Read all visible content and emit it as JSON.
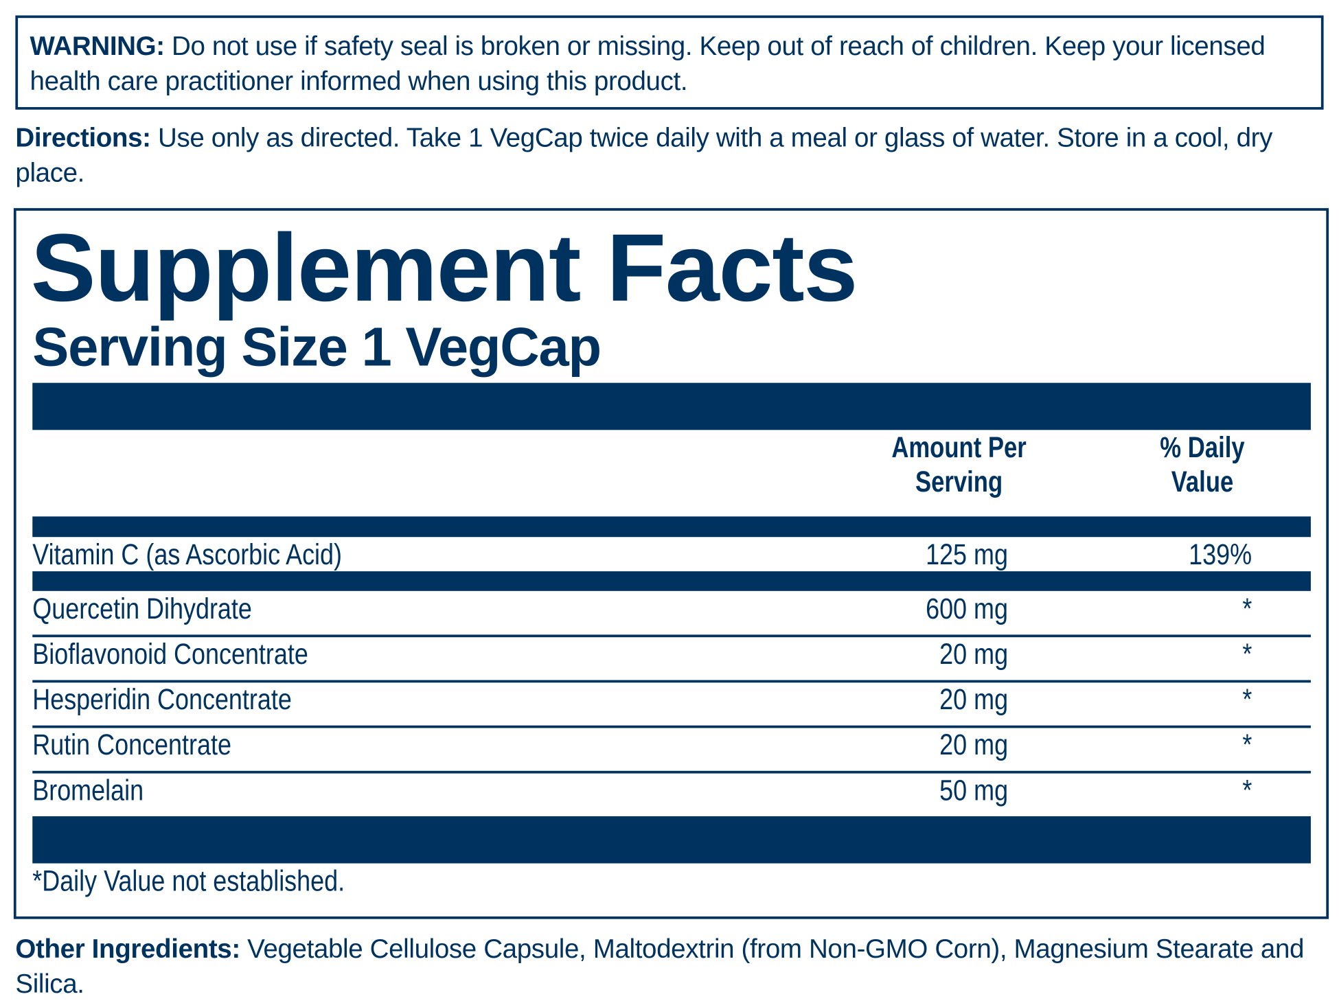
{
  "warning": {
    "label": "WARNING:",
    "text": " Do not use if safety seal is broken or missing. Keep out of reach of children. Keep your licensed health care practitioner informed when using this product."
  },
  "directions": {
    "label": "Directions:",
    "text": " Use only as directed. Take 1 VegCap twice daily with a meal or glass of water. Store in a cool, dry place."
  },
  "facts": {
    "title": "Supplement Facts",
    "serving_size": "Serving Size 1 VegCap",
    "headers": {
      "amount_line1": "Amount Per",
      "amount_line2": "Serving",
      "dv_line1": "% Daily",
      "dv_line2": "Value"
    },
    "rows": [
      {
        "name": "Vitamin C (as Ascorbic Acid)",
        "amount": "125 mg",
        "dv": "139%"
      },
      {
        "name": "Quercetin Dihydrate",
        "amount": "600 mg",
        "dv": "*"
      },
      {
        "name": "Bioflavonoid Concentrate",
        "amount": "20 mg",
        "dv": "*"
      },
      {
        "name": "Hesperidin Concentrate",
        "amount": "20 mg",
        "dv": "*"
      },
      {
        "name": "Rutin Concentrate",
        "amount": "20 mg",
        "dv": "*"
      },
      {
        "name": "Bromelain",
        "amount": "50 mg",
        "dv": "*"
      }
    ],
    "footnote": "*Daily Value not established."
  },
  "other_ingredients": {
    "label": "Other Ingredients:",
    "text": " Vegetable Cellulose Capsule, Maltodextrin (from Non-GMO Corn), Magnesium Stearate and Silica."
  },
  "colors": {
    "ink": "#00325f",
    "background": "#ffffff"
  }
}
